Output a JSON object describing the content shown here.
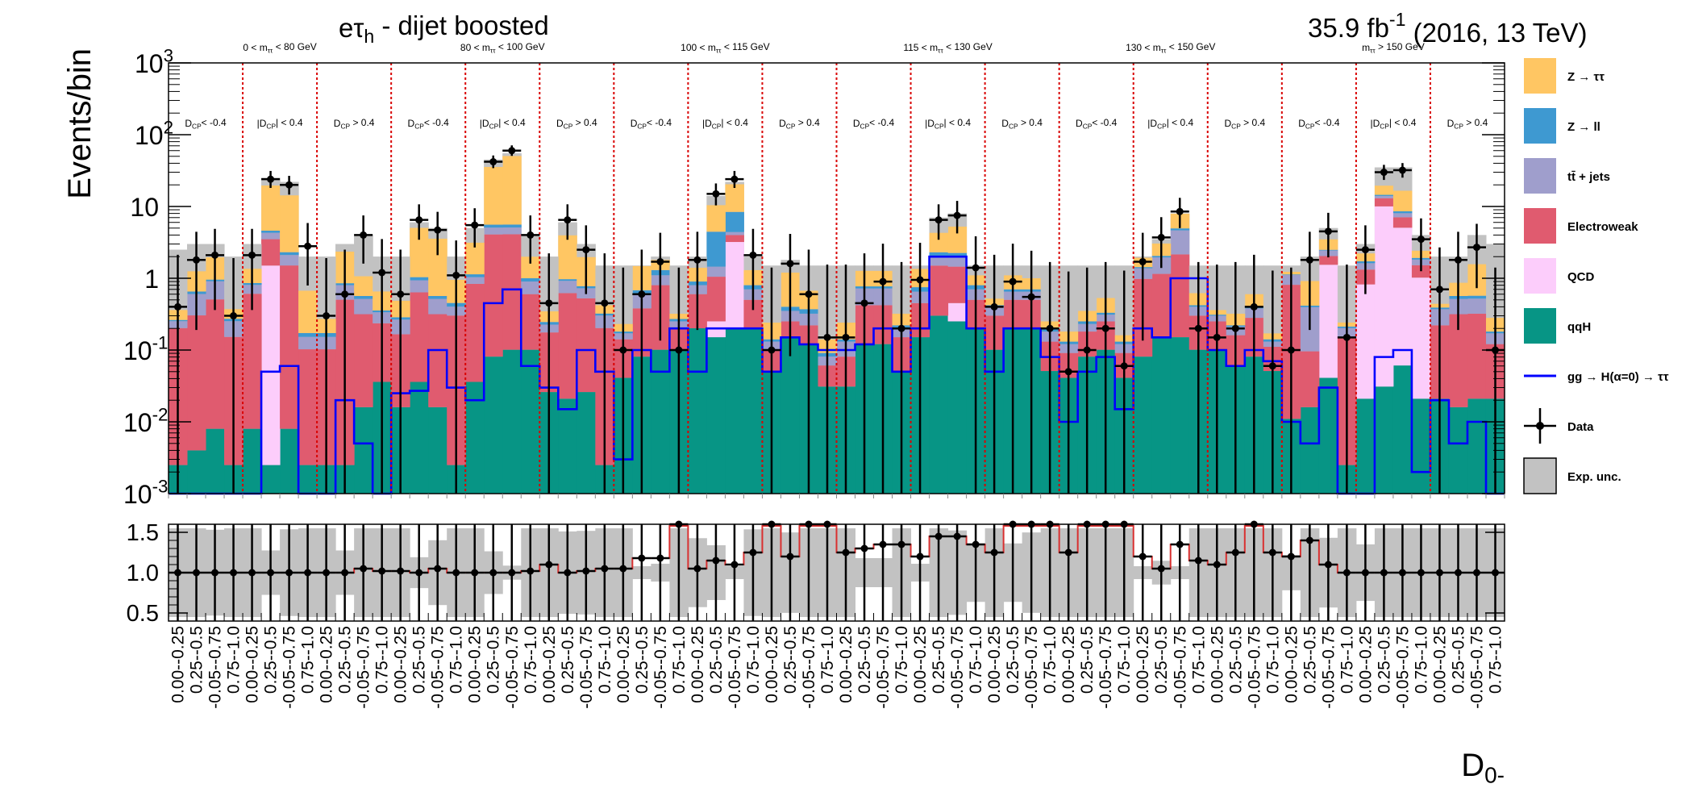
{
  "title": "eτ_h - dijet boosted",
  "lumi": "35.9 fb^-1 (2016, 13 TeV)",
  "colors": {
    "ztt": "#ffc663",
    "zll": "#3e99d1",
    "ttbar": "#9f9ecc",
    "ewk": "#e05b6f",
    "qcd": "#fccdfb",
    "qqh": "#079585",
    "ggh": "#0000ff",
    "unc": "#c2c2c2",
    "sep": "#d90000"
  },
  "chart_data": {
    "type": "bar",
    "stacked": true,
    "title": "eτ_h - dijet boosted",
    "ylabel": "Events/bin",
    "xlabel": "D_0-",
    "ylim": [
      0.001,
      1000
    ],
    "yscale": "log",
    "yticks": [
      "10^-3",
      "10^-2",
      "10^-1",
      "1",
      "10",
      "10^2",
      "10^3"
    ],
    "categories": [
      "0.00--0.25",
      "0.25--0.5",
      "-0.05--0.75",
      "0.75--1.0",
      "0.00--0.25",
      "0.25--0.5",
      "-0.05--0.75",
      "0.75--1.0",
      "0.00--0.25",
      "0.25--0.5",
      "-0.05--0.75",
      "0.75--1.0",
      "0.00--0.25",
      "0.25--0.5",
      "-0.05--0.75",
      "0.75--1.0",
      "0.00--0.25",
      "0.25--0.5",
      "-0.05--0.75",
      "0.75--1.0",
      "0.00--0.25",
      "0.25--0.5",
      "-0.05--0.75",
      "0.75--1.0",
      "0.00--0.25",
      "0.25--0.5",
      "-0.05--0.75",
      "0.75--1.0",
      "0.00--0.25",
      "0.25--0.5",
      "-0.05--0.75",
      "0.75--1.0",
      "0.00--0.25",
      "0.25--0.5",
      "-0.05--0.75",
      "0.75--1.0",
      "0.00--0.25",
      "0.25--0.5",
      "-0.05--0.75",
      "0.75--1.0",
      "0.00--0.25",
      "0.25--0.5",
      "-0.05--0.75",
      "0.75--1.0",
      "0.00--0.25",
      "0.25--0.5",
      "-0.05--0.75",
      "0.75--1.0",
      "0.00--0.25",
      "0.25--0.5",
      "-0.05--0.75",
      "0.75--1.0",
      "0.00--0.25",
      "0.25--0.5",
      "-0.05--0.75",
      "0.75--1.0",
      "0.00--0.25",
      "0.25--0.5",
      "-0.05--0.75",
      "0.75--1.0",
      "0.00--0.25",
      "0.25--0.5",
      "-0.05--0.75",
      "0.75--1.0",
      "0.00--0.25",
      "0.25--0.5",
      "-0.05--0.75",
      "0.75--1.0",
      "0.00--0.25",
      "0.25--0.5",
      "-0.05--0.75",
      "0.75--1.0"
    ],
    "mass_regions": [
      "0 < m_ττ < 80 GeV",
      "80 < m_ττ < 100 GeV",
      "100 < m_ττ < 115 GeV",
      "115 < m_ττ < 130 GeV",
      "130 < m_ττ < 150 GeV",
      "m_ττ > 150 GeV"
    ],
    "dcp_categories": [
      "D_CP< -0.4",
      "|D_CP| < 0.4",
      "D_CP > 0.4"
    ],
    "series": [
      {
        "name": "qqH",
        "color": "#079585",
        "values": [
          0.0015,
          0.003,
          0.007,
          0.0015,
          0.007,
          0.0015,
          0.007,
          0.0015,
          0.0015,
          0.0015,
          0.015,
          0.035,
          0.015,
          0.035,
          0.015,
          0.0015,
          0.035,
          0.08,
          0.1,
          0.1,
          0.025,
          0.02,
          0.025,
          0.0015,
          0.04,
          0.08,
          0.1,
          0.1,
          0.2,
          0.15,
          0.2,
          0.2,
          0.05,
          0.15,
          0.12,
          0.03,
          0.03,
          0.12,
          0.12,
          0.05,
          0.15,
          0.3,
          0.25,
          0.2,
          0.1,
          0.2,
          0.2,
          0.05,
          0.04,
          0.08,
          0.1,
          0.04,
          0.08,
          0.15,
          0.15,
          0.1,
          0.1,
          0.06,
          0.08,
          0.05,
          0.01,
          0.015,
          0.04,
          0.0015,
          0.02,
          0.03,
          0.06,
          0.02,
          0.02,
          0.015,
          0.02,
          0.02
        ]
      },
      {
        "name": "QCD",
        "color": "#fccdfb",
        "values": [
          0,
          0,
          0,
          0,
          0,
          1.5,
          0,
          0,
          0,
          0,
          0,
          0,
          0,
          0,
          0,
          0,
          0,
          0,
          0,
          0,
          0,
          0,
          0,
          0,
          0,
          0,
          0,
          0,
          0,
          0.1,
          3,
          0,
          0,
          0,
          0,
          0,
          0,
          0,
          0,
          0,
          0,
          0,
          0.2,
          0,
          0,
          0,
          0,
          0,
          0,
          0,
          0,
          0,
          0,
          0,
          0,
          0,
          0,
          0,
          0,
          0,
          0,
          0,
          1.5,
          0,
          0.8,
          10,
          5,
          1,
          0,
          0,
          0,
          0
        ]
      },
      {
        "name": "Electroweak",
        "color": "#e05b6f",
        "values": [
          0.2,
          0.3,
          0.5,
          0.15,
          0.6,
          2,
          1.5,
          0.1,
          0.1,
          0.5,
          0.3,
          0.2,
          0.15,
          0.6,
          0.3,
          0.3,
          0.8,
          4,
          4,
          0.5,
          0.15,
          0.6,
          0.5,
          0.2,
          0.1,
          0.3,
          0.7,
          0.1,
          0.4,
          0.8,
          0.8,
          0.3,
          0.05,
          0.1,
          0.1,
          0.03,
          0.05,
          0.3,
          0.3,
          0.1,
          0.3,
          1.2,
          1,
          0.3,
          0.2,
          0.3,
          0.3,
          0.08,
          0.05,
          0.1,
          0.15,
          0.05,
          0.9,
          1,
          2,
          0.2,
          0.15,
          0.1,
          0.2,
          0.06,
          0.8,
          0.08,
          0.5,
          0.15,
          0.5,
          3,
          2,
          0.5,
          0.2,
          0.3,
          0.3,
          0.1
        ]
      },
      {
        "name": "tt̄ + jets",
        "color": "#9f9ecc",
        "values": [
          0.05,
          0.3,
          0.4,
          0.1,
          0.2,
          0.8,
          0.6,
          0.05,
          0.05,
          0.3,
          0.2,
          0.1,
          0.1,
          0.3,
          0.2,
          0.1,
          0.2,
          1,
          1,
          0.3,
          0.05,
          0.3,
          0.2,
          0.1,
          0.03,
          0.2,
          0.3,
          0.05,
          0.2,
          0.4,
          0.4,
          0.2,
          0.03,
          0.1,
          0.1,
          0.02,
          0.05,
          0.3,
          0.3,
          0.05,
          0.2,
          0.5,
          0.5,
          0.2,
          0.1,
          0.15,
          0.15,
          0.05,
          0.03,
          0.05,
          0.06,
          0.03,
          0.4,
          0.8,
          2.5,
          0.1,
          0.05,
          0.05,
          0.1,
          0.02,
          0.3,
          0.3,
          0.4,
          0.05,
          0.3,
          1,
          1,
          0.3,
          0.15,
          0.2,
          0.2,
          0.05
        ]
      },
      {
        "name": "Z → ll",
        "color": "#3e99d1",
        "values": [
          0.01,
          0.05,
          0.05,
          0.02,
          0.05,
          0.3,
          0.2,
          0.02,
          0.02,
          0.05,
          0.05,
          0.02,
          0.02,
          0.1,
          0.05,
          0.05,
          0.1,
          0.5,
          0.5,
          0.1,
          0.02,
          0.05,
          0.05,
          0.02,
          0.01,
          0.1,
          0.2,
          0.02,
          0.1,
          3,
          4,
          0.1,
          0.01,
          0.05,
          0.05,
          0.01,
          0.01,
          0.05,
          0.05,
          0.02,
          0.1,
          0.3,
          0.3,
          0.1,
          0.02,
          0.05,
          0.05,
          0.02,
          0.01,
          0.02,
          0.02,
          0.01,
          0.05,
          0.1,
          0.3,
          0.02,
          0.01,
          0.01,
          0.02,
          0.01,
          0.02,
          0.02,
          0.05,
          0.01,
          0.1,
          0.5,
          0.5,
          0.1,
          0.02,
          0.05,
          0.05,
          0.01
        ]
      },
      {
        "name": "Z → ττ",
        "color": "#ffc663",
        "values": [
          0.1,
          0.6,
          1,
          0.1,
          0.5,
          15,
          12,
          0.5,
          0.1,
          1.5,
          0.5,
          0.3,
          0.2,
          4,
          3,
          0.5,
          2,
          30,
          45,
          1,
          0.1,
          3,
          1.2,
          0.1,
          0.05,
          0.8,
          0.5,
          0.05,
          0.5,
          6,
          12,
          0.5,
          0.1,
          0.8,
          0.3,
          0.05,
          0.1,
          0.5,
          0.5,
          0.1,
          0.6,
          2,
          3,
          0.3,
          0.1,
          0.4,
          0.3,
          0.05,
          0.05,
          0.1,
          0.2,
          0.03,
          0.5,
          1,
          3,
          0.2,
          0.05,
          0.1,
          0.2,
          0.03,
          0.1,
          0.5,
          1,
          0.03,
          0.5,
          5,
          8,
          0.5,
          0.05,
          0.3,
          1,
          0.1
        ]
      },
      {
        "name": "gg → H(α=0) → ττ",
        "color": "#0000ff",
        "values": [
          0.001,
          0.001,
          0.001,
          0.001,
          0.001,
          0.05,
          0.06,
          0.001,
          0.001,
          0.02,
          0.005,
          0.001,
          0.025,
          0.027,
          0.1,
          0.03,
          0.02,
          0.45,
          0.7,
          0.06,
          0.03,
          0.015,
          0.1,
          0.05,
          0.003,
          0.1,
          0.05,
          0.2,
          0.05,
          0.2,
          0.2,
          0.2,
          0.05,
          0.15,
          0.12,
          0.1,
          0.1,
          0.12,
          0.2,
          0.05,
          0.2,
          2,
          2,
          0.2,
          0.05,
          0.2,
          0.2,
          0.08,
          0.01,
          0.05,
          0.08,
          0.015,
          0.2,
          0.15,
          1,
          1,
          0.1,
          0.06,
          0.1,
          0.07,
          0.01,
          0.005,
          0.03,
          0.001,
          0.001,
          0.08,
          0.1,
          0.002,
          0.02,
          0.005,
          0.01,
          0.001
        ]
      },
      {
        "name": "Data",
        "values": [
          0.4,
          1.8,
          2.1,
          0.3,
          2.1,
          24,
          20,
          2.8,
          0.3,
          0.6,
          4,
          1.2,
          0.6,
          6.5,
          4.7,
          1.1,
          5.5,
          42,
          60,
          4,
          0.45,
          6.5,
          2.5,
          0.45,
          0.1,
          0.6,
          1.7,
          0.1,
          1.8,
          15,
          24,
          2.1,
          0.1,
          1.6,
          0.6,
          0.15,
          0.15,
          0.45,
          0.9,
          0.2,
          0.95,
          6.5,
          7.5,
          1.4,
          0.4,
          0.9,
          0.55,
          0.2,
          0.05,
          0.1,
          0.2,
          0.06,
          1.7,
          3.7,
          8.5,
          0.2,
          0.15,
          0.2,
          0.4,
          0.06,
          0.1,
          1.8,
          4.5,
          0.15,
          2.5,
          30,
          32,
          3.5,
          0.7,
          1.8,
          2.7,
          0.1
        ]
      }
    ],
    "exp_unc_total": [
      2.5,
      3,
      3,
      2,
      3,
      25,
      22,
      2,
      2,
      3,
      4,
      2,
      2,
      6,
      5,
      2,
      5,
      45,
      55,
      4,
      2,
      6,
      3,
      1.5,
      1.5,
      1.5,
      2,
      1.5,
      2,
      14,
      22,
      2,
      1.5,
      1.8,
      1.5,
      1.5,
      1.5,
      1.5,
      1.5,
      1.5,
      1.5,
      7,
      8,
      1.5,
      1.5,
      1.5,
      1.5,
      1.5,
      1.5,
      1.5,
      1.5,
      1.5,
      2,
      3.5,
      8,
      1.5,
      1.5,
      1.5,
      1.5,
      1.5,
      1.5,
      2,
      5,
      1.5,
      3,
      35,
      35,
      4,
      2,
      2,
      4,
      3
    ],
    "ratio": {
      "ylim": [
        0.4,
        1.6
      ],
      "yticks": [
        "0.5",
        "1.0",
        "1.5"
      ],
      "values": [
        1.0,
        1.0,
        1.0,
        1.0,
        1.0,
        1.0,
        1.0,
        1.0,
        1.0,
        1.0,
        1.05,
        1.02,
        1.02,
        1.0,
        1.05,
        1.0,
        1.0,
        1.0,
        1.0,
        1.02,
        1.1,
        1.0,
        1.02,
        1.05,
        1.05,
        1.18,
        1.18,
        1.6,
        1.05,
        1.15,
        1.1,
        1.25,
        1.6,
        1.2,
        1.6,
        1.6,
        1.25,
        1.3,
        1.35,
        1.35,
        1.2,
        1.45,
        1.45,
        1.35,
        1.25,
        1.6,
        1.6,
        1.6,
        1.25,
        1.6,
        1.6,
        1.6,
        1.2,
        1.05,
        1.35,
        1.15,
        1.1,
        1.25,
        1.6,
        1.25,
        1.2,
        1.4,
        1.1,
        1.0,
        1.0,
        1.0,
        1.0,
        1.0,
        1.0,
        1.0,
        1.0,
        1.0
      ]
    },
    "legend_placement": "right"
  },
  "legend": [
    {
      "key": "ztt",
      "label": "Z → ττ",
      "kind": "box"
    },
    {
      "key": "zll",
      "label": "Z → ll",
      "kind": "box"
    },
    {
      "key": "ttbar",
      "label": "tt̄ + jets",
      "kind": "box"
    },
    {
      "key": "ewk",
      "label": "Electroweak",
      "kind": "box"
    },
    {
      "key": "qcd",
      "label": "QCD",
      "kind": "box"
    },
    {
      "key": "qqh",
      "label": "qqH",
      "kind": "box"
    },
    {
      "key": "ggh",
      "label": "gg → H(α=0) → ττ",
      "kind": "line"
    },
    {
      "key": "data",
      "label": "Data",
      "kind": "marker"
    },
    {
      "key": "unc",
      "label": "Exp. unc.",
      "kind": "box"
    }
  ]
}
